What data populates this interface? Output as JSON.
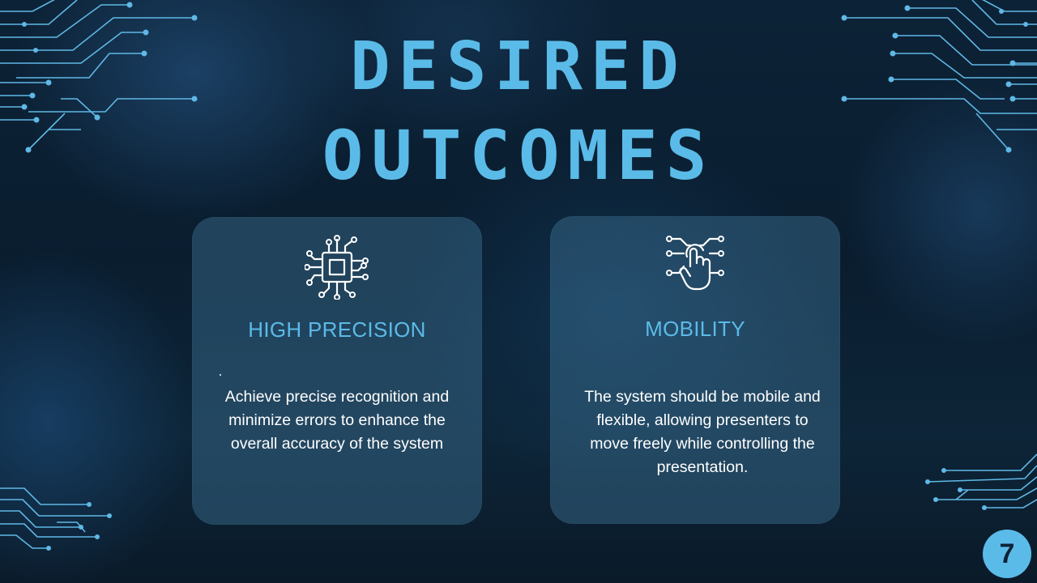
{
  "title": {
    "line1": "DESIRED",
    "line2": "OUTCOMES"
  },
  "cards": [
    {
      "icon": "processor-chip-icon",
      "heading": "HIGH PRECISION",
      "marker": ".",
      "body": "Achieve precise recognition and minimize errors to enhance the overall accuracy of the system"
    },
    {
      "icon": "touch-hand-icon",
      "heading": "MOBILITY",
      "body": "The system should be mobile and flexible, allowing presenters to move freely while controlling the presentation."
    }
  ],
  "page_number": "7",
  "colors": {
    "accent": "#5bbbe8",
    "background": "#0c2236",
    "card": "#2f5a72",
    "text": "#ffffff"
  }
}
